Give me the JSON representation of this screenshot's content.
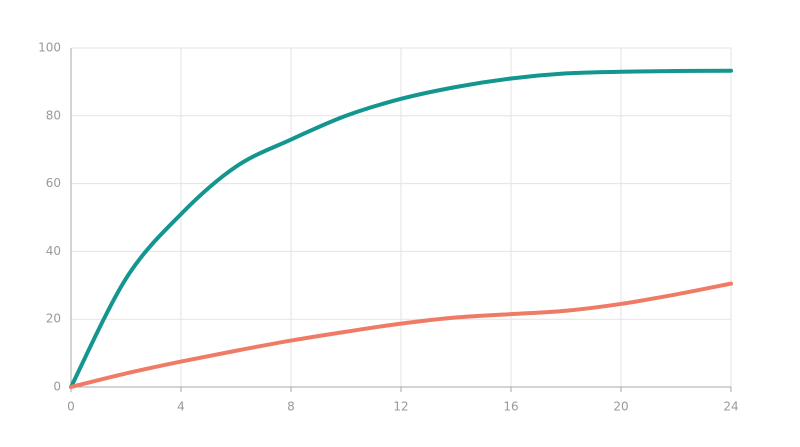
{
  "chart_data": {
    "type": "line",
    "x": [
      0,
      2,
      4,
      6,
      8,
      10,
      12,
      14,
      16,
      18,
      20,
      22,
      24
    ],
    "series": [
      {
        "color": "#13968f",
        "values": [
          0,
          32,
          51,
          65,
          73,
          80,
          85,
          88.5,
          91,
          92.5,
          93,
          93.2,
          93.3
        ]
      },
      {
        "color": "#ef7b67",
        "values": [
          0,
          4,
          7.5,
          10.7,
          13.7,
          16.3,
          18.7,
          20.5,
          21.5,
          22.5,
          24.5,
          27.3,
          30.5
        ]
      }
    ],
    "xlim": [
      0,
      24
    ],
    "xticks": [
      0,
      4,
      8,
      12,
      16,
      20,
      24
    ],
    "ylim": [
      0,
      100
    ],
    "yticks": [
      0,
      20,
      40,
      60,
      80,
      100
    ],
    "grid": true
  }
}
